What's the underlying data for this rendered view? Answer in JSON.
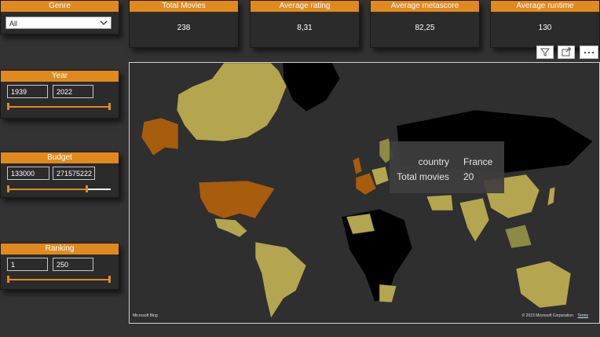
{
  "genre": {
    "title": "Genre",
    "selected": "All"
  },
  "kpis": [
    {
      "title": "Total Movies",
      "value": "238"
    },
    {
      "title": "Average rating",
      "value": "8,31"
    },
    {
      "title": "Average metascore",
      "value": "82,25"
    },
    {
      "title": "Average runtime",
      "value": "130"
    }
  ],
  "year": {
    "title": "Year",
    "min": "1939",
    "max": "2022"
  },
  "budget": {
    "title": "Budget",
    "min": "133000",
    "max": "271575222"
  },
  "ranking": {
    "title": "Ranking",
    "min": "1",
    "max": "250"
  },
  "map": {
    "tooltip": {
      "country_label": "country",
      "country_value": "France",
      "movies_label": "Total movies",
      "movies_value": "20"
    },
    "bing_label": "Microsoft Bing",
    "copyright": "© 2023 Microsoft Corporation",
    "terms": "Terms"
  },
  "colors": {
    "accent": "#e08a1e",
    "region_high": "#a85c0d",
    "region_mid": "#b3a64f",
    "region_low": "#8c8a45",
    "region_none": "#000000"
  },
  "icons": [
    "filter-icon",
    "focus-mode-icon",
    "more-options-icon",
    "chevron-down-icon"
  ]
}
